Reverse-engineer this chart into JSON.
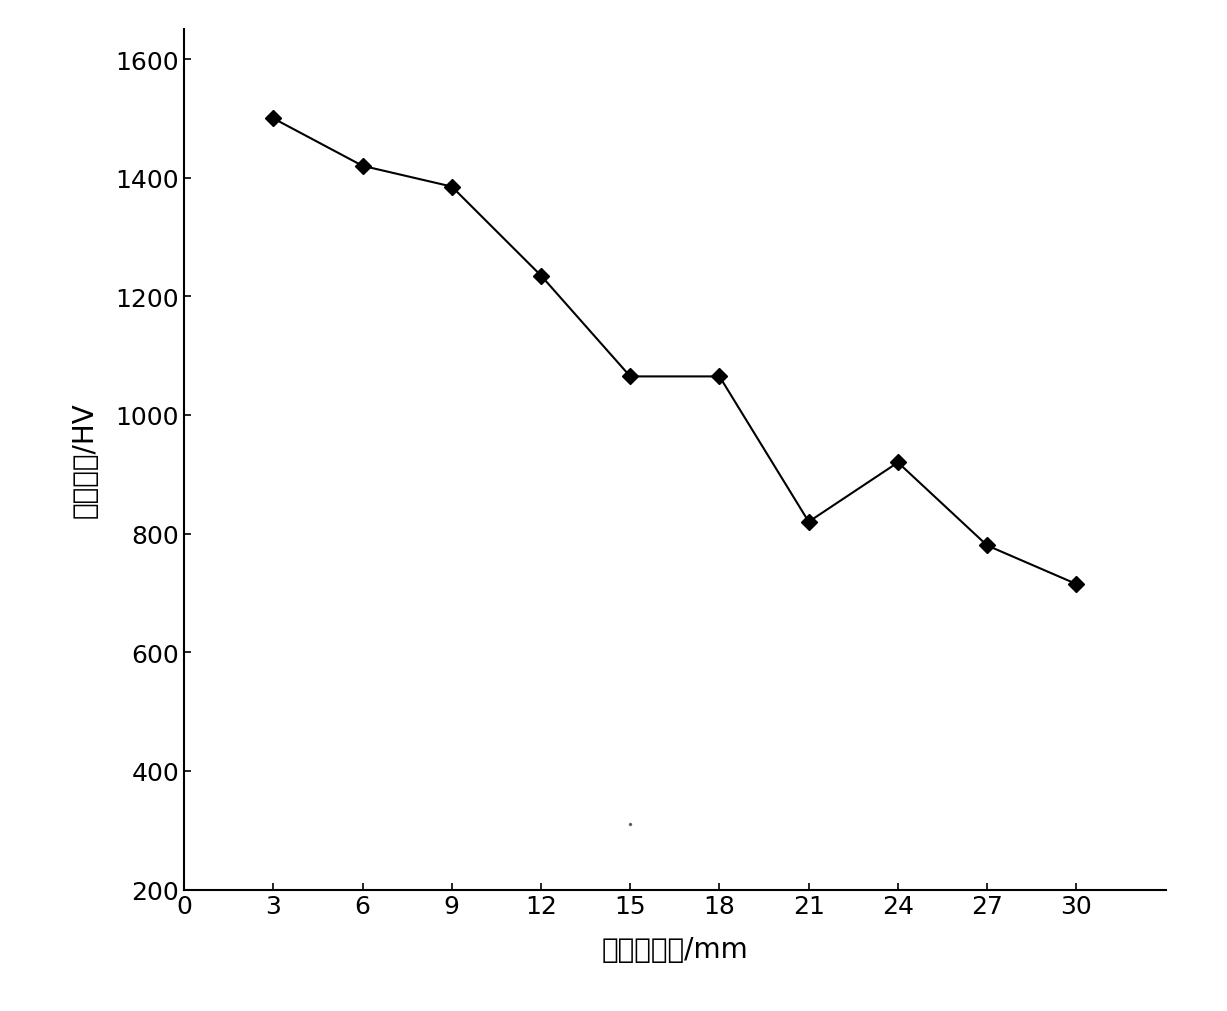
{
  "x": [
    3,
    6,
    9,
    12,
    15,
    18,
    21,
    24,
    27,
    30
  ],
  "y": [
    1500,
    1420,
    1385,
    1235,
    1065,
    1065,
    820,
    920,
    780,
    715
  ],
  "xlabel": "距顶部距离/mm",
  "ylabel": "显微硬度/HV",
  "xlim": [
    0,
    33
  ],
  "ylim": [
    200,
    1650
  ],
  "xticks": [
    0,
    3,
    6,
    9,
    12,
    15,
    18,
    21,
    24,
    27,
    30
  ],
  "yticks": [
    200,
    400,
    600,
    800,
    1000,
    1200,
    1400,
    1600
  ],
  "line_color": "#000000",
  "marker": "D",
  "marker_size": 8,
  "marker_face_color": "#000000",
  "line_width": 1.5,
  "xlabel_fontsize": 20,
  "ylabel_fontsize": 20,
  "tick_fontsize": 18,
  "background_color": "#ffffff"
}
